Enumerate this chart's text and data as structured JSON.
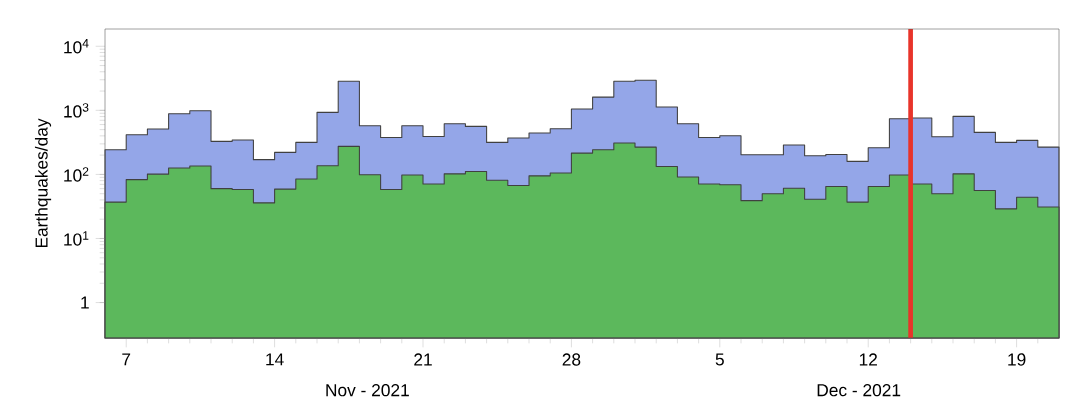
{
  "chart_data": {
    "type": "histogram",
    "ylabel": "Earthquakes/day",
    "log": "y",
    "grid": false,
    "bins": [
      "2021-11-06",
      "2021-11-07",
      "2021-11-08",
      "2021-11-09",
      "2021-11-10",
      "2021-11-11",
      "2021-11-12",
      "2021-11-13",
      "2021-11-14",
      "2021-11-15",
      "2021-11-16",
      "2021-11-17",
      "2021-11-18",
      "2021-11-19",
      "2021-11-20",
      "2021-11-21",
      "2021-11-22",
      "2021-11-23",
      "2021-11-24",
      "2021-11-25",
      "2021-11-26",
      "2021-11-27",
      "2021-11-28",
      "2021-11-29",
      "2021-11-30",
      "2021-12-01",
      "2021-12-02",
      "2021-12-03",
      "2021-12-04",
      "2021-12-05",
      "2021-12-06",
      "2021-12-07",
      "2021-12-08",
      "2021-12-09",
      "2021-12-10",
      "2021-12-11",
      "2021-12-12",
      "2021-12-13",
      "2021-12-14",
      "2021-12-15",
      "2021-12-16",
      "2021-12-17",
      "2021-12-18",
      "2021-12-19",
      "2021-12-20",
      "2021-12-21"
    ],
    "series": [
      {
        "color": "#94a6e8",
        "values": [
          243,
          417,
          511,
          887,
          988,
          328,
          344,
          170,
          221,
          316,
          930,
          2840,
          576,
          378,
          576,
          392,
          619,
          562,
          316,
          370,
          443,
          517,
          1050,
          1610,
          2840,
          2940,
          1130,
          619,
          378,
          402,
          203,
          203,
          287,
          196,
          205,
          160,
          261,
          741,
          759,
          388,
          805,
          453,
          316,
          340,
          267
        ]
      },
      {
        "color": "#5cb85c",
        "values": [
          37,
          83,
          101,
          126,
          135,
          60,
          58,
          36,
          59,
          85,
          137,
          274,
          99,
          58,
          98,
          71,
          102,
          111,
          81,
          67,
          95,
          105,
          215,
          243,
          309,
          267,
          133,
          91,
          71,
          69,
          39,
          50,
          61,
          41,
          65,
          37,
          65,
          98,
          71,
          50,
          102,
          56,
          29,
          44,
          31
        ]
      }
    ],
    "xlim": [
      "2021-11-06",
      "2021-12-21"
    ],
    "xticks": [
      {
        "value": "2021-11-07",
        "label": "7"
      },
      {
        "value": "2021-11-08",
        "label": null
      },
      {
        "value": "2021-11-09",
        "label": null
      },
      {
        "value": "2021-11-10",
        "label": null
      },
      {
        "value": "2021-11-11",
        "label": null
      },
      {
        "value": "2021-11-12",
        "label": null
      },
      {
        "value": "2021-11-13",
        "label": null
      },
      {
        "value": "2021-11-14",
        "label": "14"
      },
      {
        "value": "2021-11-15",
        "label": null
      },
      {
        "value": "2021-11-16",
        "label": null
      },
      {
        "value": "2021-11-17",
        "label": null
      },
      {
        "value": "2021-11-18",
        "label": null
      },
      {
        "value": "2021-11-19",
        "label": null
      },
      {
        "value": "2021-11-20",
        "label": null
      },
      {
        "value": "2021-11-21",
        "label": "21"
      },
      {
        "value": "2021-11-22",
        "label": null
      },
      {
        "value": "2021-11-23",
        "label": null
      },
      {
        "value": "2021-11-24",
        "label": null
      },
      {
        "value": "2021-11-25",
        "label": null
      },
      {
        "value": "2021-11-26",
        "label": null
      },
      {
        "value": "2021-11-27",
        "label": null
      },
      {
        "value": "2021-11-28",
        "label": "28"
      },
      {
        "value": "2021-11-29",
        "label": null
      },
      {
        "value": "2021-11-30",
        "label": null
      },
      {
        "value": "2021-12-01",
        "label": null
      },
      {
        "value": "2021-12-02",
        "label": null
      },
      {
        "value": "2021-12-03",
        "label": null
      },
      {
        "value": "2021-12-04",
        "label": null
      },
      {
        "value": "2021-12-05",
        "label": "5"
      },
      {
        "value": "2021-12-06",
        "label": null
      },
      {
        "value": "2021-12-07",
        "label": null
      },
      {
        "value": "2021-12-08",
        "label": null
      },
      {
        "value": "2021-12-09",
        "label": null
      },
      {
        "value": "2021-12-10",
        "label": null
      },
      {
        "value": "2021-12-11",
        "label": null
      },
      {
        "value": "2021-12-12",
        "label": "12"
      },
      {
        "value": "2021-12-13",
        "label": null
      },
      {
        "value": "2021-12-14",
        "label": null
      },
      {
        "value": "2021-12-15",
        "label": null
      },
      {
        "value": "2021-12-16",
        "label": null
      },
      {
        "value": "2021-12-17",
        "label": null
      },
      {
        "value": "2021-12-18",
        "label": null
      },
      {
        "value": "2021-12-19",
        "label": "19"
      },
      {
        "value": "2021-12-20",
        "label": null
      }
    ],
    "ylim": [
      0.28,
      18600
    ],
    "yticks": [
      1,
      {
        "value": 10,
        "label": "10$^{1}$"
      },
      {
        "value": 100,
        "label": "10$^{2}$"
      },
      {
        "value": 1000,
        "label": "10$^{3}$"
      },
      {
        "value": 10000,
        "label": "10$^{4}$"
      }
    ],
    "ref_lines": [
      {
        "axis": "x",
        "value": "2021-12-14",
        "label": null,
        "color": "#e8342a"
      }
    ],
    "annotations": [
      "Nov - 2021",
      "Dec - 2021"
    ]
  }
}
